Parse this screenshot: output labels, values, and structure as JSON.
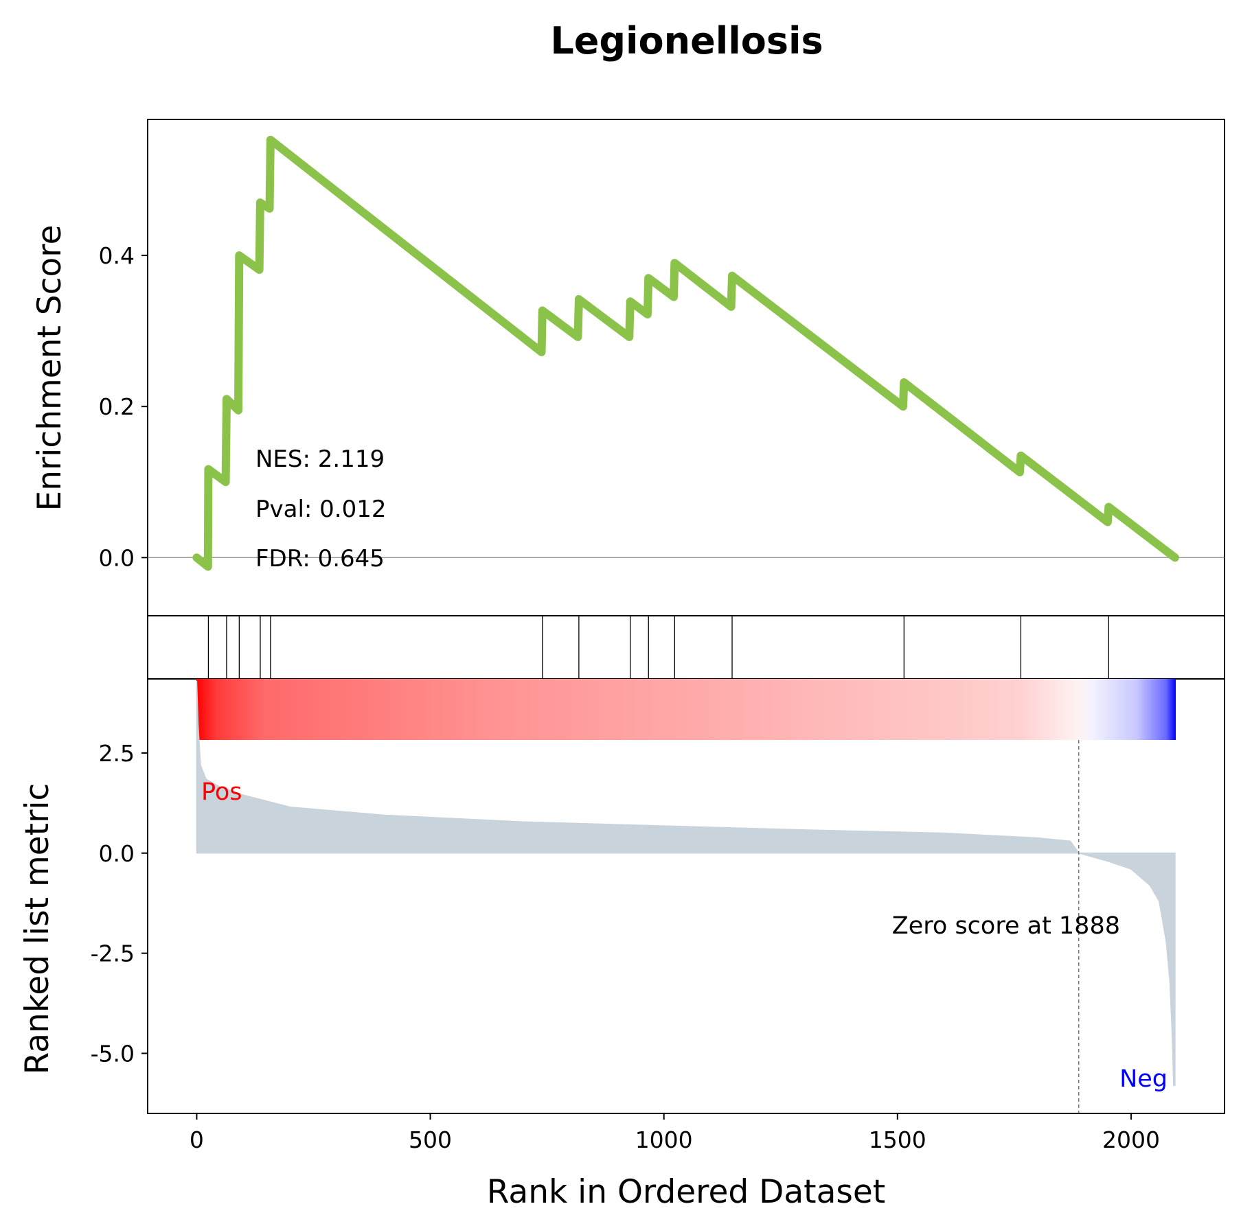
{
  "chart_data": {
    "type": "line",
    "title": "Legionellosis",
    "xlabel": "Rank in Ordered Dataset",
    "xlim": [
      -105,
      2200
    ],
    "x_ticks": [
      0,
      500,
      1000,
      1500,
      2000
    ],
    "es_panel": {
      "ylabel": "Enrichment Score",
      "ylim": [
        -0.077,
        0.58
      ],
      "y_ticks": [
        "0.0",
        "0.2",
        "0.4"
      ],
      "y_tick_values": [
        0.0,
        0.2,
        0.4
      ],
      "line_color": "#8bc34a",
      "zero_line": true,
      "curve": [
        [
          0,
          0.0
        ],
        [
          24,
          -0.012
        ],
        [
          25,
          0.117
        ],
        [
          62,
          0.1
        ],
        [
          64,
          0.21
        ],
        [
          89,
          0.195
        ],
        [
          91,
          0.4
        ],
        [
          134,
          0.381
        ],
        [
          136,
          0.47
        ],
        [
          156,
          0.462
        ],
        [
          158,
          0.553
        ],
        [
          738,
          0.272
        ],
        [
          740,
          0.327
        ],
        [
          816,
          0.292
        ],
        [
          818,
          0.342
        ],
        [
          926,
          0.292
        ],
        [
          928,
          0.339
        ],
        [
          965,
          0.322
        ],
        [
          967,
          0.37
        ],
        [
          1021,
          0.345
        ],
        [
          1023,
          0.39
        ],
        [
          1144,
          0.332
        ],
        [
          1146,
          0.373
        ],
        [
          1512,
          0.2
        ],
        [
          1514,
          0.232
        ],
        [
          1762,
          0.113
        ],
        [
          1764,
          0.135
        ],
        [
          1950,
          0.047
        ],
        [
          1952,
          0.067
        ],
        [
          2094,
          0.0
        ]
      ],
      "stats": {
        "nes": "NES: 2.119",
        "pval": "Pval: 0.012",
        "fdr": "FDR: 0.645"
      }
    },
    "hits": [
      25,
      64,
      91,
      136,
      158,
      740,
      818,
      928,
      967,
      1023,
      1146,
      1514,
      1764,
      1952
    ],
    "ranked_panel": {
      "ylabel": "Ranked list metric",
      "ylim": [
        -6.5,
        4.35
      ],
      "y_ticks": [
        "2.5",
        "0.0",
        "-2.5",
        "-5.0"
      ],
      "y_tick_values": [
        2.5,
        0.0,
        -2.5,
        -5.0
      ],
      "fill_color": "#c9d3dc",
      "n_genes": 2094,
      "metric_profile": [
        [
          0,
          4.3
        ],
        [
          3,
          3.2
        ],
        [
          8,
          2.2
        ],
        [
          20,
          1.85
        ],
        [
          50,
          1.65
        ],
        [
          100,
          1.45
        ],
        [
          200,
          1.15
        ],
        [
          400,
          0.95
        ],
        [
          700,
          0.78
        ],
        [
          1000,
          0.68
        ],
        [
          1300,
          0.58
        ],
        [
          1600,
          0.5
        ],
        [
          1800,
          0.38
        ],
        [
          1870,
          0.3
        ],
        [
          1888,
          0.0
        ],
        [
          1950,
          -0.2
        ],
        [
          2000,
          -0.4
        ],
        [
          2040,
          -0.8
        ],
        [
          2060,
          -1.2
        ],
        [
          2075,
          -2.2
        ],
        [
          2083,
          -3.2
        ],
        [
          2088,
          -4.5
        ],
        [
          2091,
          -5.8
        ],
        [
          2094,
          -5.8
        ]
      ],
      "zero_cross": 1888,
      "pos_label": "Pos",
      "neg_label": "Neg",
      "pos_color": "#ff0000",
      "neg_color": "#0000ff",
      "zero_label": "Zero score at 1888"
    }
  }
}
